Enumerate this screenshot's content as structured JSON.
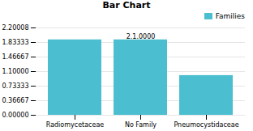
{
  "chart_data": {
    "type": "bar",
    "title": "Bar Chart",
    "categories": [
      "Radiomycetaceae",
      "No Family",
      "Pneumocystidaceae"
    ],
    "series": [
      {
        "name": "Families",
        "color": "#4BBFCF",
        "values": [
          1.9,
          1.9,
          1.0
        ]
      }
    ],
    "ylim": [
      0.0,
      2.20008
    ],
    "yticks": [
      {
        "value": 0.0,
        "label": "0.00000"
      },
      {
        "value": 0.36667,
        "label": "0.36667"
      },
      {
        "value": 0.73333,
        "label": "0.73333"
      },
      {
        "value": 1.1,
        "label": "1.10000"
      },
      {
        "value": 1.46667,
        "label": "1.46667"
      },
      {
        "value": 1.83333,
        "label": "1.83333"
      },
      {
        "value": 2.20008,
        "label": "2.20008"
      }
    ],
    "annotations": [
      {
        "text": "2.1.0000",
        "x": "No Family",
        "y": 1.91
      }
    ],
    "grid": true,
    "legend": "upper right"
  }
}
